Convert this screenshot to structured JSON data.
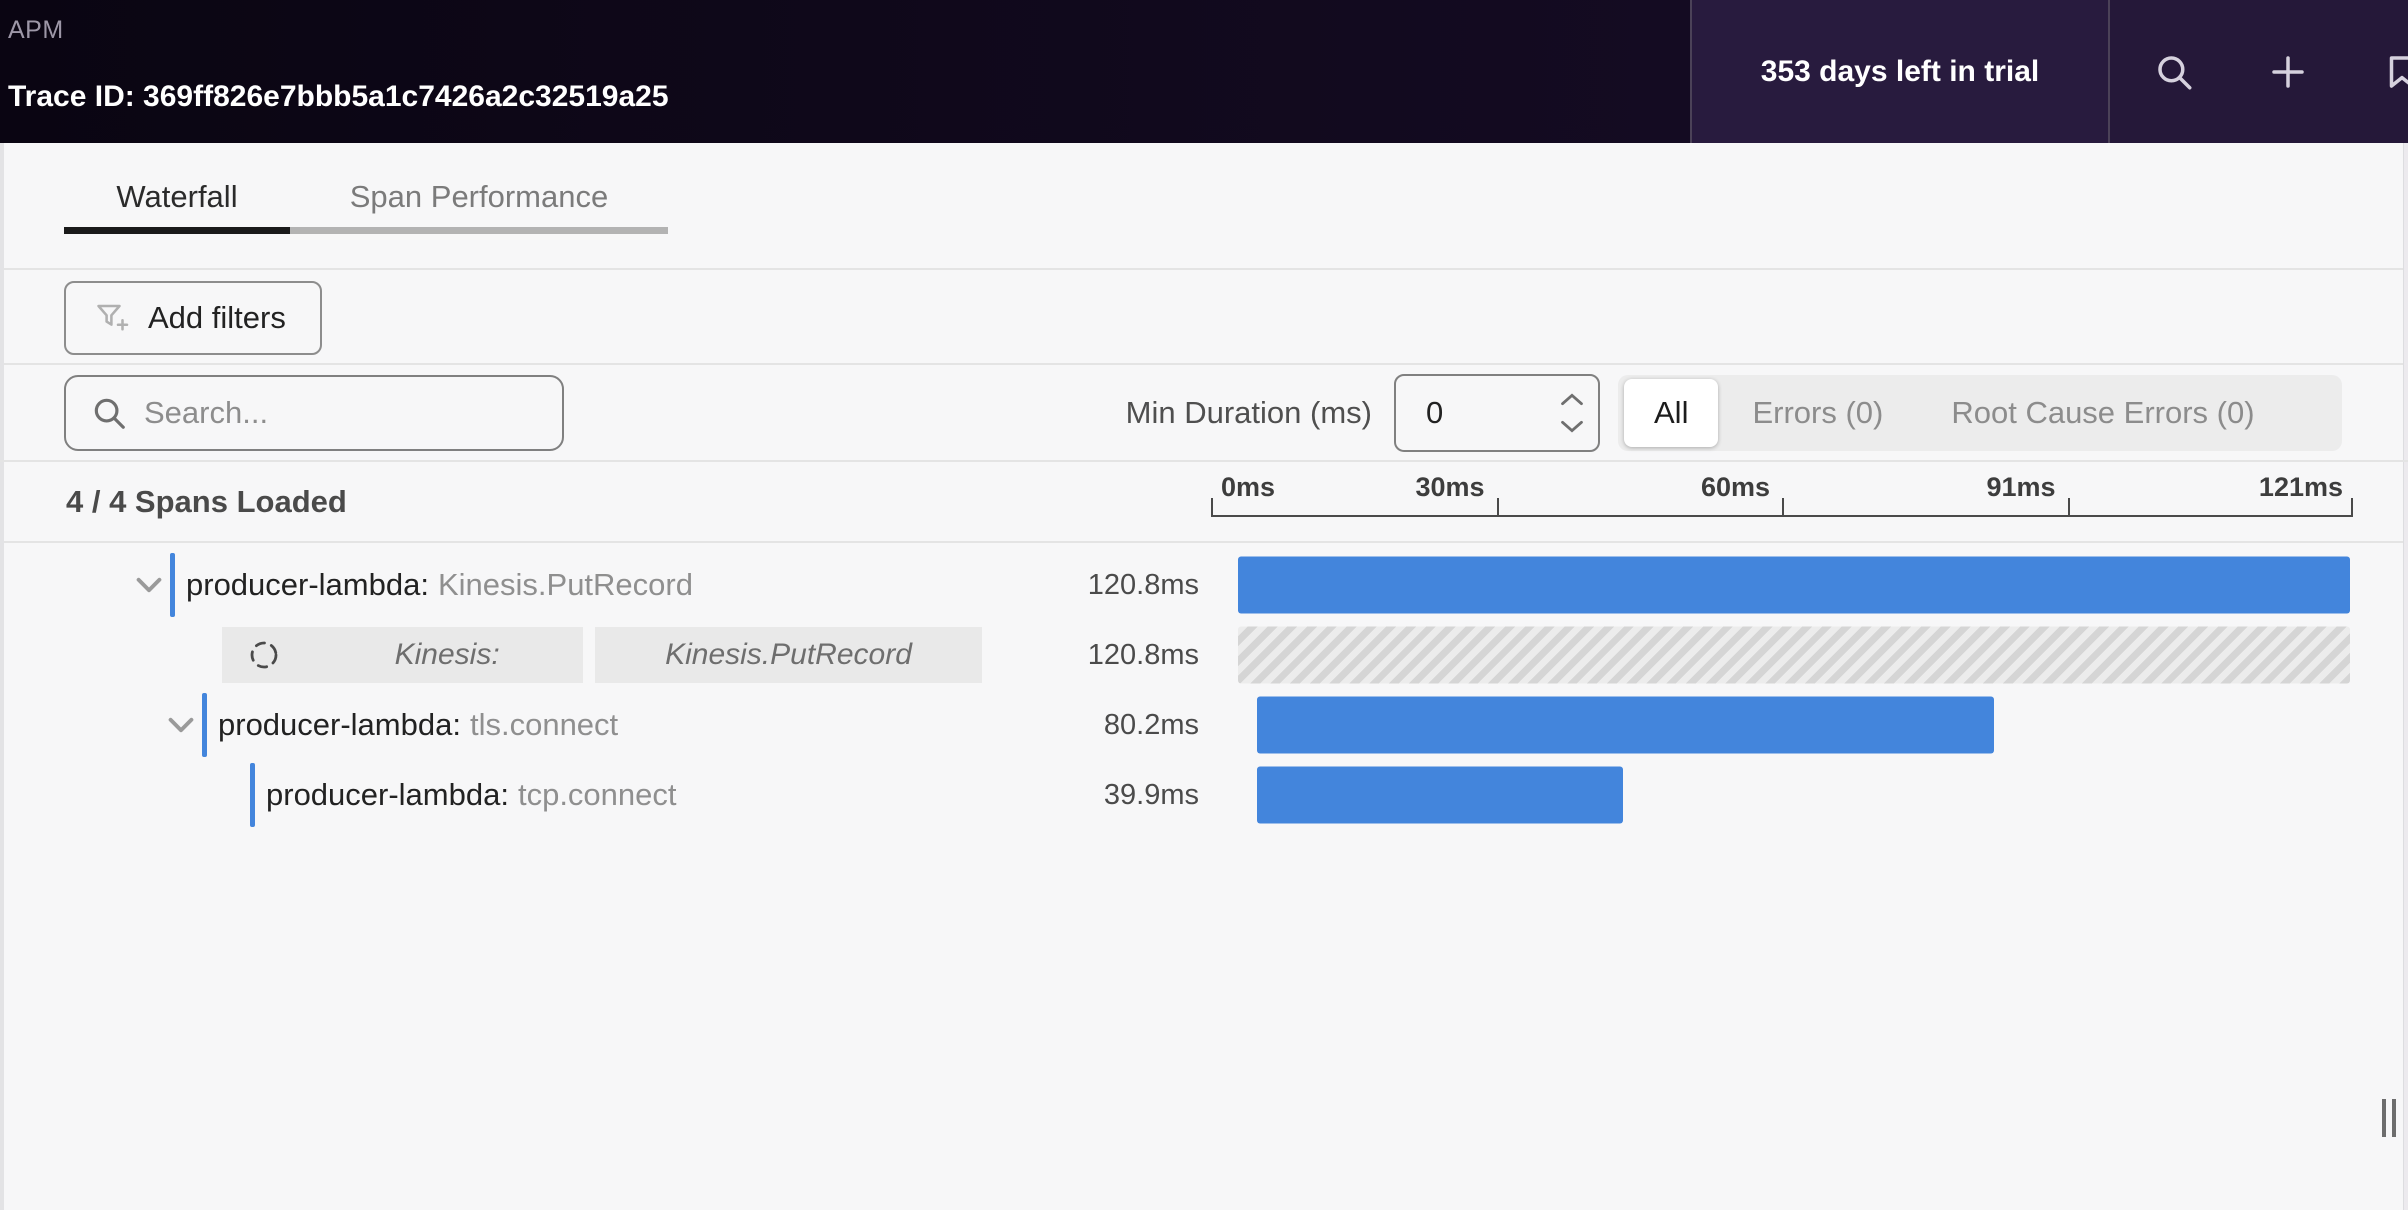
{
  "header": {
    "app_label": "APM",
    "trace_id": "Trace ID: 369ff826e7bbb5a1c7426a2c32519a25",
    "trial_banner": "353 days left in trial"
  },
  "icons": {
    "header": [
      "search-icon",
      "plus-icon",
      "bookmark-icon"
    ],
    "add_filters": "filter-plus-icon",
    "search_field": "search-icon",
    "stepper": [
      "chevron-up-icon",
      "chevron-down-icon"
    ],
    "row_expand": "chevron-down-icon",
    "loading": "spinner-icon",
    "right_edge": "drag-handle-icon"
  },
  "tabs": [
    {
      "label": "Waterfall",
      "active": true
    },
    {
      "label": "Span Performance",
      "active": false
    }
  ],
  "toolbar": {
    "add_filters_label": "Add filters"
  },
  "filter_bar": {
    "search_placeholder": "Search...",
    "min_duration_label": "Min Duration (ms)",
    "min_duration_value": "0",
    "segments": [
      {
        "label": "All",
        "active": true
      },
      {
        "label": "Errors (0)",
        "active": false
      },
      {
        "label": "Root Cause Errors (0)",
        "active": false
      }
    ]
  },
  "status_line": {
    "spans_loaded": "4 / 4 Spans Loaded"
  },
  "ruler": {
    "ticks": [
      "0ms",
      "30ms",
      "60ms",
      "91ms",
      "121ms"
    ]
  },
  "waterfall": {
    "rows": [
      {
        "kind": "span",
        "service": "producer-lambda:",
        "operation": "Kinesis.PutRecord",
        "duration": "120.8ms",
        "expandable": true,
        "bar": {
          "left_pct": 2.4,
          "width_pct": 97.3,
          "style": "solid"
        }
      },
      {
        "kind": "loading",
        "chips": [
          {
            "label": "Kinesis:"
          },
          {
            "label": "Kinesis.PutRecord"
          }
        ],
        "duration": "120.8ms",
        "bar": {
          "left_pct": 2.4,
          "width_pct": 97.3,
          "style": "hatched"
        }
      },
      {
        "kind": "span",
        "service": "producer-lambda:",
        "operation": "tls.connect",
        "duration": "80.2ms",
        "expandable": true,
        "bar": {
          "left_pct": 4.0,
          "width_pct": 64.6,
          "style": "solid"
        }
      },
      {
        "kind": "span",
        "service": "producer-lambda:",
        "operation": "tcp.connect",
        "duration": "39.9ms",
        "expandable": false,
        "bar": {
          "left_pct": 4.0,
          "width_pct": 32.1,
          "style": "solid"
        }
      }
    ]
  },
  "colors": {
    "accent_blue": "#4385DC",
    "header_bg_left": "#0d0716",
    "header_bg_right": "#281b3e",
    "hatch_stripe": "#d5d5d5",
    "hatch_bg": "#ececec"
  }
}
